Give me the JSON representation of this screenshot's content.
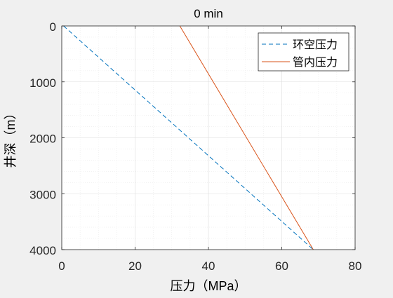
{
  "chart_data": {
    "type": "line",
    "title": "0 min",
    "xlabel": "压力（MPa）",
    "ylabel": "井深（m）",
    "xlim": [
      0,
      80
    ],
    "ylim": [
      0,
      4000
    ],
    "y_reversed": true,
    "grid": true,
    "minor_grid": true,
    "x_ticks": [
      0,
      20,
      40,
      60,
      80
    ],
    "y_ticks": [
      0,
      1000,
      2000,
      3000,
      4000
    ],
    "legend_position": "top-right",
    "series": [
      {
        "name": "环空压力",
        "style": "dashed",
        "color": "#0072bd",
        "points": [
          [
            0.5,
            0
          ],
          [
            68.6,
            4000
          ]
        ]
      },
      {
        "name": "管内压力",
        "style": "solid",
        "color": "#d95319",
        "points": [
          [
            32.2,
            0
          ],
          [
            68.6,
            4000
          ]
        ]
      }
    ]
  },
  "colors": {
    "background": "#f0f0f0",
    "axes": "#ffffff",
    "grid": "#dcdcdc",
    "axis_line": "#262626"
  }
}
